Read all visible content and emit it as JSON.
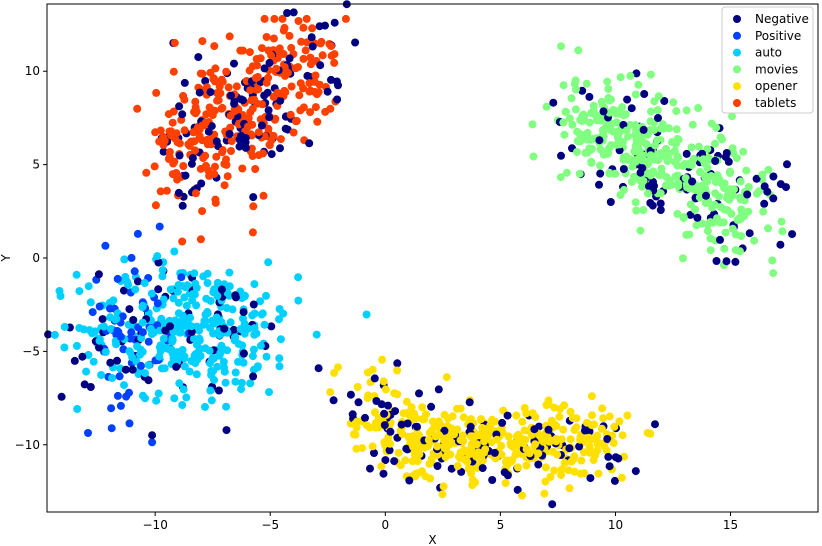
{
  "chart_data": {
    "type": "scatter",
    "title": "",
    "xlabel": "X",
    "ylabel": "Y",
    "xlim": [
      -14.7,
      18.8
    ],
    "ylim": [
      -13.6,
      13.6
    ],
    "xticks": [
      -10,
      -5,
      0,
      5,
      10,
      15
    ],
    "yticks": [
      -10,
      -5,
      0,
      5,
      10
    ],
    "grid": false,
    "legend": "top-right",
    "series": [
      {
        "name": "Negative",
        "color": "#000080",
        "count": 400
      },
      {
        "name": "Positive",
        "color": "#0040ff",
        "count": 60
      },
      {
        "name": "auto",
        "color": "#00d0ff",
        "count": 330
      },
      {
        "name": "movies",
        "color": "#80ff80",
        "count": 380
      },
      {
        "name": "opener",
        "color": "#ffe000",
        "count": 420
      },
      {
        "name": "tablets",
        "color": "#ff4000",
        "count": 300
      }
    ],
    "clusters": [
      {
        "series": "tablets",
        "region": "upper-left",
        "x_range": [
          -10.5,
          -2.5
        ],
        "y_range": [
          2,
          13
        ]
      },
      {
        "series": "auto",
        "region": "left",
        "x_range": [
          -13,
          -3
        ],
        "y_range": [
          -8.5,
          0.5
        ]
      },
      {
        "series": "movies",
        "region": "right",
        "x_range": [
          8,
          17
        ],
        "y_range": [
          -1,
          10
        ]
      },
      {
        "series": "opener",
        "region": "bottom-center",
        "x_range": [
          -3.5,
          11
        ],
        "y_range": [
          -12.5,
          -4
        ]
      }
    ]
  }
}
